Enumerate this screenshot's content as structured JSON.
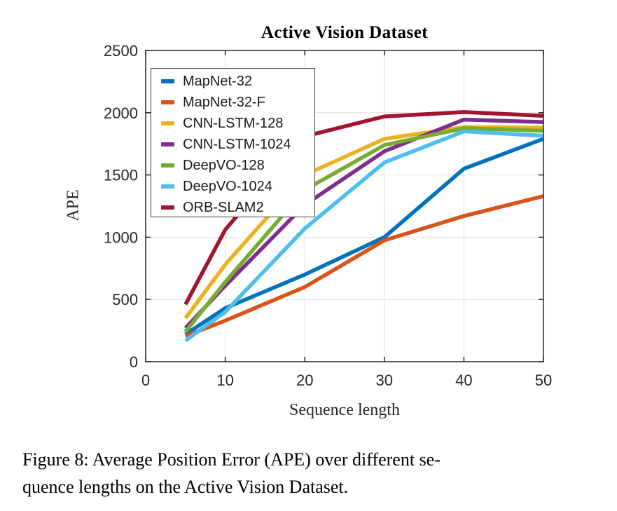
{
  "figure": {
    "title": "Active Vision Dataset",
    "ylabel": "APE",
    "xlabel": "Sequence length",
    "caption_line1": "Figure 8:  Average Position Error (APE) over different se-",
    "caption_line2": "quence lengths on the Active Vision Dataset."
  },
  "chart_data": {
    "type": "line",
    "title": "Active Vision Dataset",
    "xlabel": "Sequence length",
    "ylabel": "APE",
    "x": [
      5,
      10,
      20,
      30,
      40,
      50
    ],
    "xlim": [
      0,
      50
    ],
    "ylim": [
      0,
      2500
    ],
    "xticks": [
      0,
      10,
      20,
      30,
      40,
      50
    ],
    "yticks": [
      0,
      500,
      1000,
      1500,
      2000,
      2500
    ],
    "grid": true,
    "legend_position": "upper-left-inside",
    "axis_color": "#262626",
    "grid_color": "#e2e2e2",
    "series": [
      {
        "name": "MapNet-32",
        "color": "#0072BD",
        "values": [
          220,
          430,
          700,
          1000,
          1550,
          1790
        ]
      },
      {
        "name": "MapNet-32-F",
        "color": "#D95319",
        "values": [
          205,
          330,
          600,
          975,
          1170,
          1330
        ]
      },
      {
        "name": "CNN-LSTM-128",
        "color": "#EDB120",
        "values": [
          350,
          780,
          1500,
          1790,
          1885,
          1880
        ]
      },
      {
        "name": "CNN-LSTM-1024",
        "color": "#7E2F8E",
        "values": [
          270,
          610,
          1260,
          1690,
          1945,
          1925
        ]
      },
      {
        "name": "DeepVO-128",
        "color": "#77AC30",
        "values": [
          240,
          640,
          1380,
          1740,
          1875,
          1855
        ]
      },
      {
        "name": "DeepVO-1024",
        "color": "#4DBEEE",
        "values": [
          170,
          400,
          1070,
          1600,
          1850,
          1815
        ]
      },
      {
        "name": "ORB-SLAM2",
        "color": "#A2142F",
        "values": [
          460,
          1060,
          1810,
          1970,
          2005,
          1975
        ]
      }
    ]
  }
}
